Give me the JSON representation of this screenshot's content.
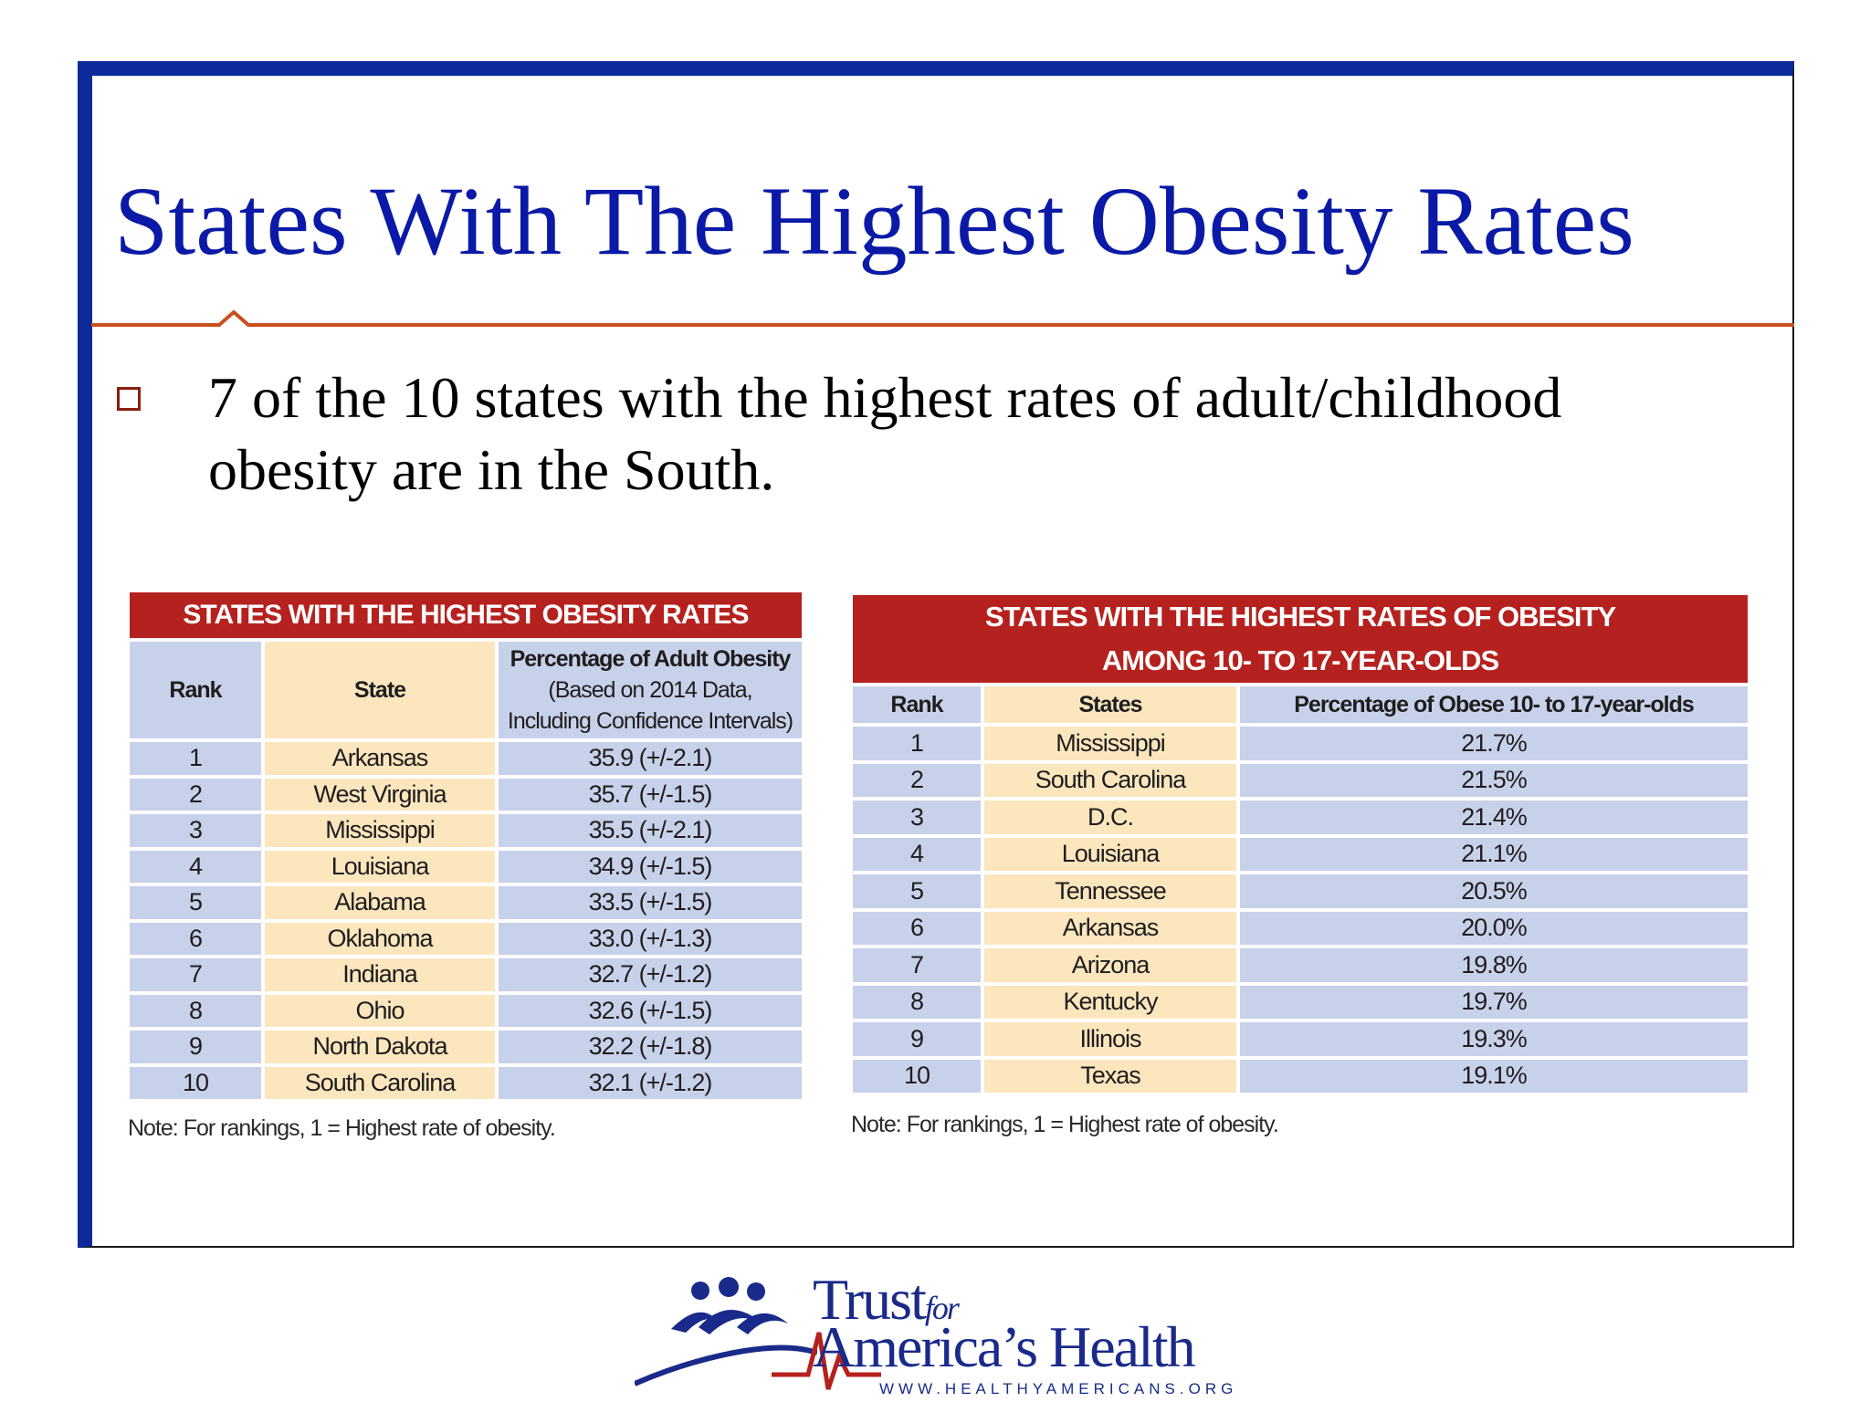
{
  "slide": {
    "title": "States With The Highest Obesity Rates",
    "bullet_line1": "7 of the 10 states with the highest rates of adult/childhood",
    "bullet_line2": "obesity are in the South."
  },
  "adult_table": {
    "banner": "STATES WITH THE HIGHEST OBESITY RATES",
    "col_rank": "Rank",
    "col_state": "State",
    "col_pct_line1": "Percentage of Adult Obesity",
    "col_pct_line2": "(Based on 2014 Data,",
    "col_pct_line3": "Including Confidence Intervals)",
    "rows": [
      {
        "rank": "1",
        "state": "Arkansas",
        "pct": "35.9 (+/-2.1)"
      },
      {
        "rank": "2",
        "state": "West Virginia",
        "pct": "35.7 (+/-1.5)"
      },
      {
        "rank": "3",
        "state": "Mississippi",
        "pct": "35.5 (+/-2.1)"
      },
      {
        "rank": "4",
        "state": "Louisiana",
        "pct": "34.9 (+/-1.5)"
      },
      {
        "rank": "5",
        "state": "Alabama",
        "pct": "33.5 (+/-1.5)"
      },
      {
        "rank": "6",
        "state": "Oklahoma",
        "pct": "33.0 (+/-1.3)"
      },
      {
        "rank": "7",
        "state": "Indiana",
        "pct": "32.7 (+/-1.2)"
      },
      {
        "rank": "8",
        "state": "Ohio",
        "pct": "32.6 (+/-1.5)"
      },
      {
        "rank": "9",
        "state": "North Dakota",
        "pct": "32.2 (+/-1.8)"
      },
      {
        "rank": "10",
        "state": "South Carolina",
        "pct": "32.1 (+/-1.2)"
      }
    ],
    "note": "Note: For rankings, 1 = Highest rate of obesity."
  },
  "youth_table": {
    "banner_line1": "STATES WITH THE HIGHEST RATES OF OBESITY",
    "banner_line2": "AMONG 10- TO 17-YEAR-OLDS",
    "col_rank": "Rank",
    "col_state": "States",
    "col_pct": "Percentage of Obese 10- to 17-year-olds",
    "rows": [
      {
        "rank": "1",
        "state": "Mississippi",
        "pct": "21.7%"
      },
      {
        "rank": "2",
        "state": "South Carolina",
        "pct": "21.5%"
      },
      {
        "rank": "3",
        "state": "D.C.",
        "pct": "21.4%"
      },
      {
        "rank": "4",
        "state": "Louisiana",
        "pct": "21.1%"
      },
      {
        "rank": "5",
        "state": "Tennessee",
        "pct": "20.5%"
      },
      {
        "rank": "6",
        "state": "Arkansas",
        "pct": "20.0%"
      },
      {
        "rank": "7",
        "state": "Arizona",
        "pct": "19.8%"
      },
      {
        "rank": "8",
        "state": "Kentucky",
        "pct": "19.7%"
      },
      {
        "rank": "9",
        "state": "Illinois",
        "pct": "19.3%"
      },
      {
        "rank": "10",
        "state": "Texas",
        "pct": "19.1%"
      }
    ],
    "note": "Note: For rankings, 1 = Highest rate of obesity."
  },
  "logo": {
    "word_trust": "Trust",
    "word_for": "for",
    "word_americas_health": "America’s Health",
    "url": "WWW.HEALTHYAMERICANS.ORG"
  },
  "colors": {
    "title_blue": "#0a1aa6",
    "frame_blue": "#0d2a9c",
    "rule_orange": "#c8501e",
    "banner_red": "#b5211e",
    "row_blue": "#c8d1ea",
    "row_yellow": "#fbe6be"
  },
  "icons": {
    "bullet": "hollow-square-bullet",
    "logo_figures": "three-people-figures-icon",
    "logo_heartbeat": "heartbeat-line-icon"
  }
}
